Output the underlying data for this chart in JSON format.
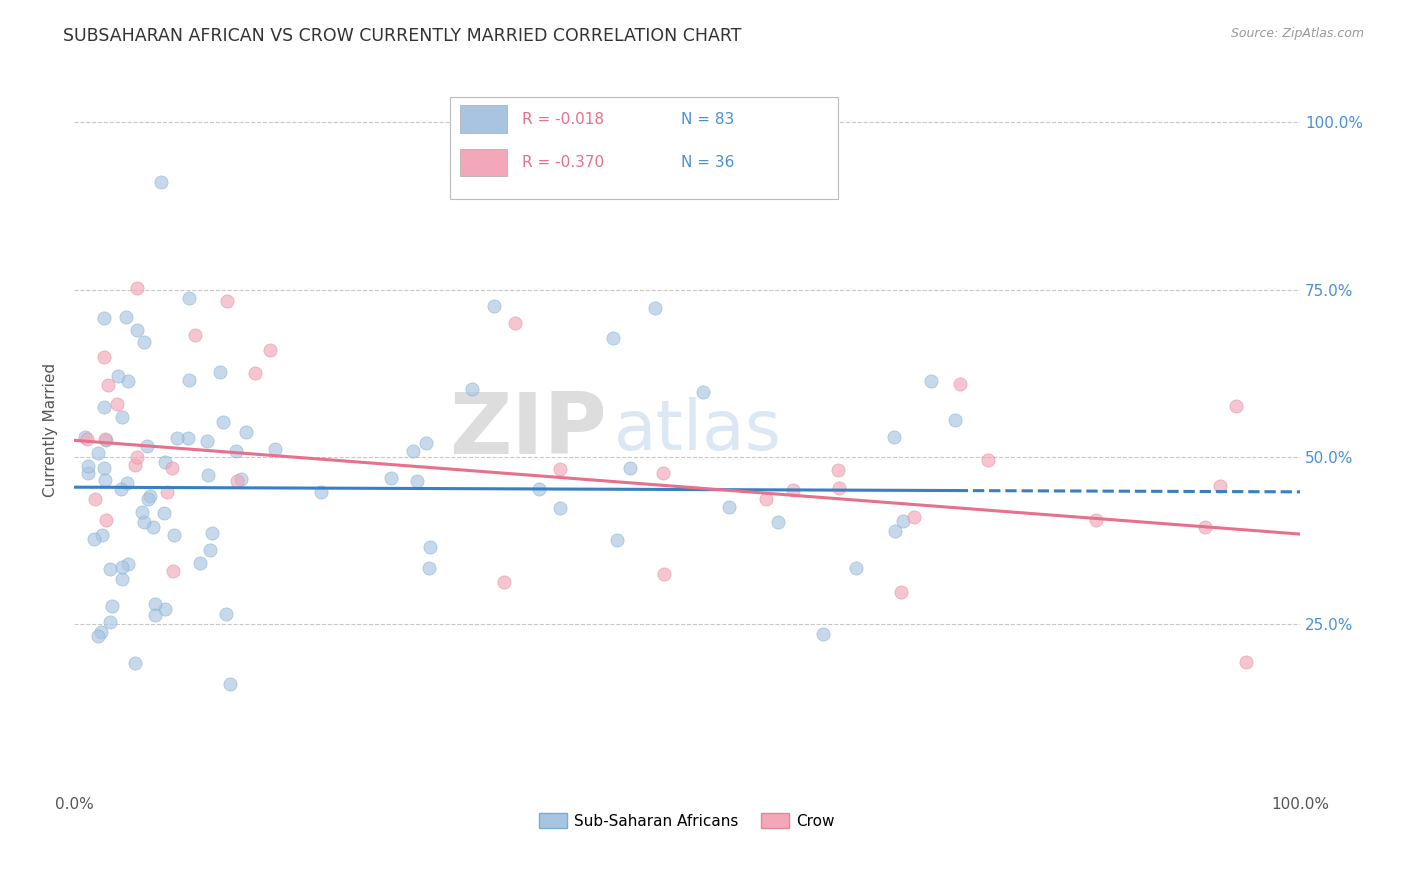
{
  "title": "SUBSAHARAN AFRICAN VS CROW CURRENTLY MARRIED CORRELATION CHART",
  "source": "Source: ZipAtlas.com",
  "ylabel": "Currently Married",
  "watermark_bold": "ZIP",
  "watermark_light": "atlas",
  "legend_entries": [
    {
      "label": "Sub-Saharan Africans",
      "color": "#a8c4e0",
      "R": "-0.018",
      "N": "83"
    },
    {
      "label": "Crow",
      "color": "#f4a7b9",
      "R": "-0.370",
      "N": "36"
    }
  ],
  "ytick_labels": [
    "25.0%",
    "50.0%",
    "75.0%",
    "100.0%"
  ],
  "ytick_values": [
    0.25,
    0.5,
    0.75,
    1.0
  ],
  "xlim": [
    0.0,
    1.0
  ],
  "ylim": [
    0.0,
    1.08
  ],
  "blue_line_color": "#3a7fc1",
  "pink_line_color": "#e8708a",
  "blue_line_y0": 0.455,
  "blue_line_y1": 0.448,
  "blue_line_solid_end": 0.72,
  "pink_line_y0": 0.525,
  "pink_line_y1": 0.385,
  "scatter_alpha": 0.65,
  "scatter_size": 90,
  "background_color": "#ffffff",
  "grid_color": "#c8c8c8",
  "title_fontsize": 12.5,
  "label_fontsize": 11,
  "tick_fontsize": 11,
  "right_tick_color": "#4a90d9",
  "legend_R_color": "#e8708a",
  "legend_N_color": "#4a90d9"
}
